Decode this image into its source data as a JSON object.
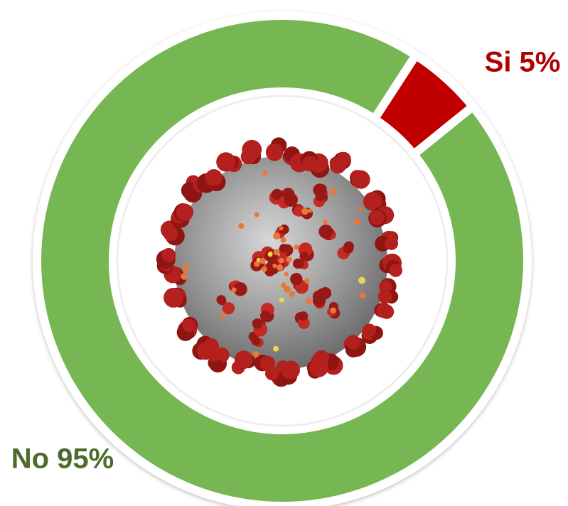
{
  "chart_data": {
    "type": "pie",
    "variant": "donut",
    "categories": [
      "No",
      "Si"
    ],
    "values": [
      95,
      5
    ],
    "labels": [
      "No 95%",
      "Si 5%"
    ],
    "colors": [
      "#77b752",
      "#c00000"
    ],
    "label_colors": [
      "#4e6b2b",
      "#b00000"
    ],
    "title": "",
    "center_image": "coronavirus-illustration"
  }
}
